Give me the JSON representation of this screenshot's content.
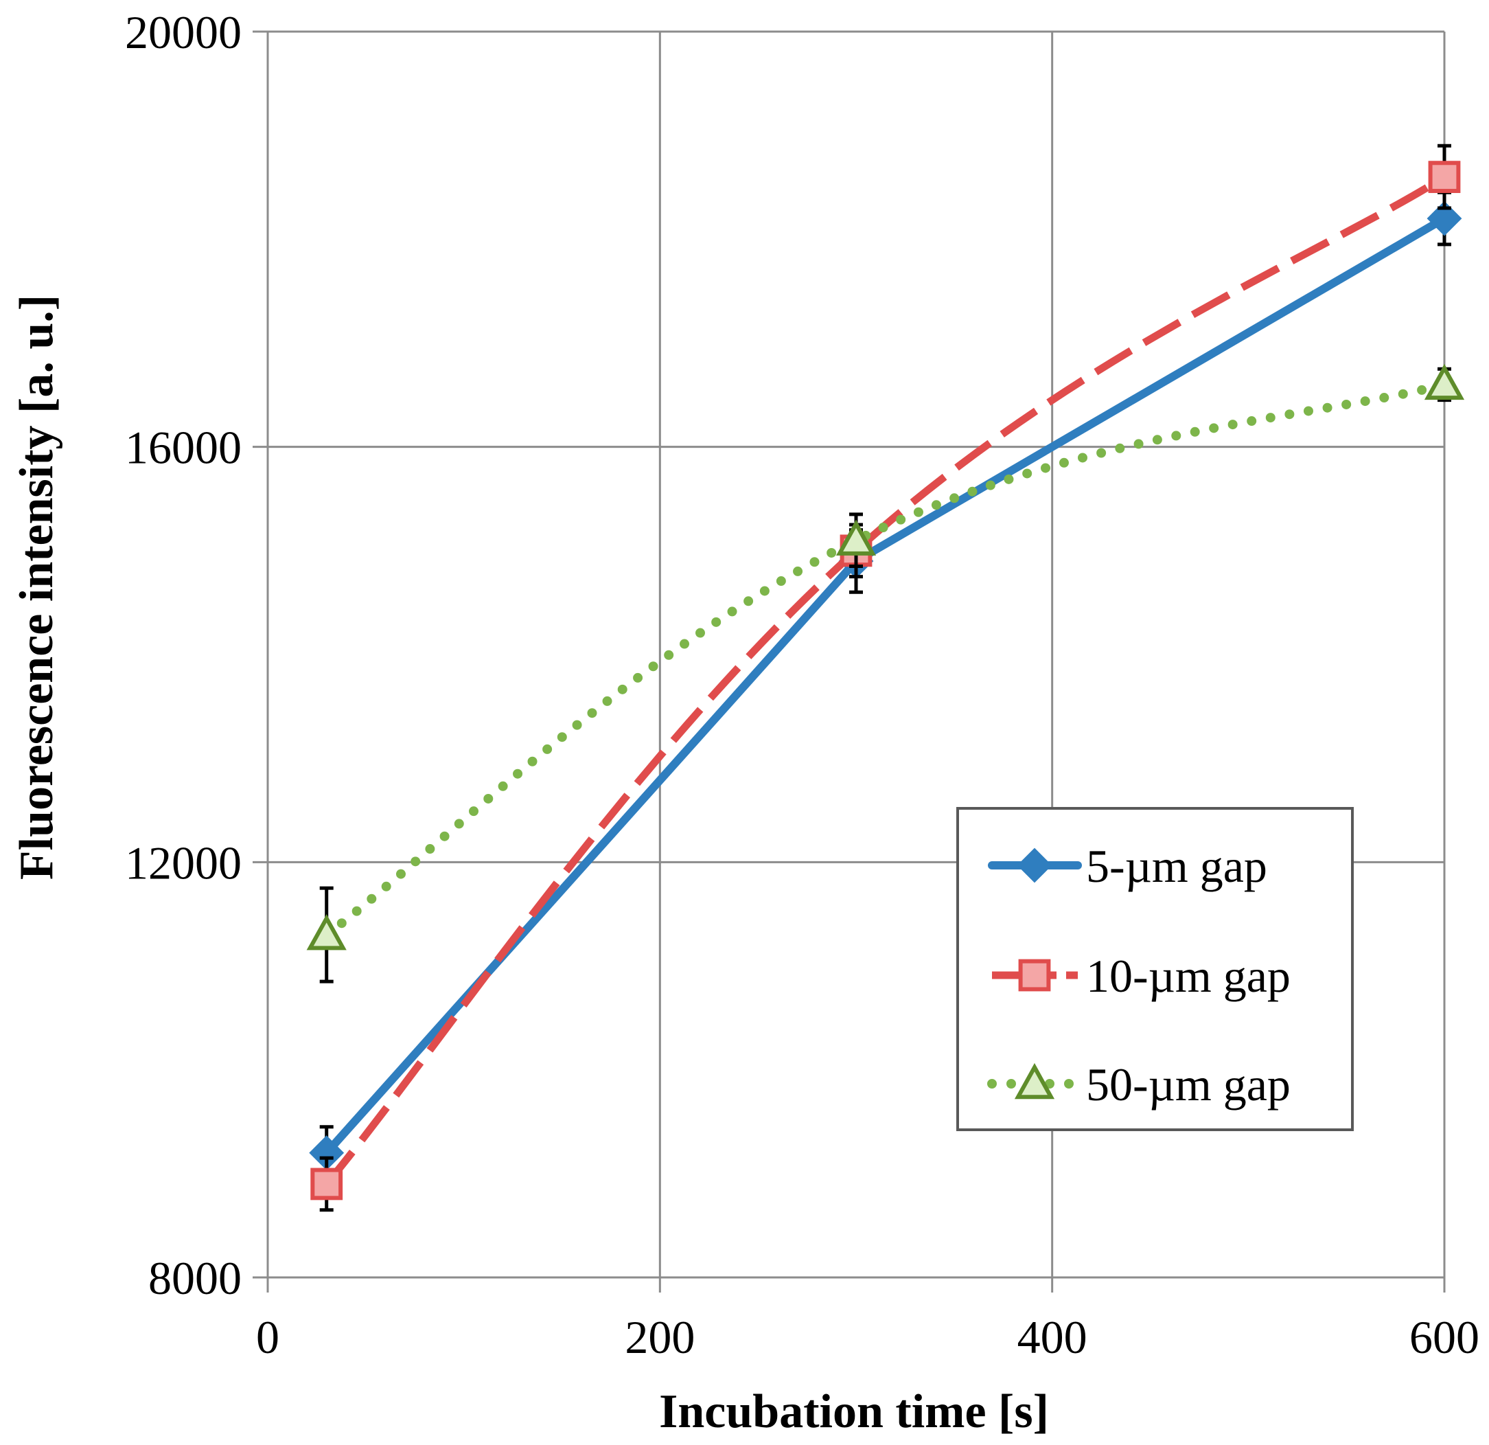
{
  "chart_data": {
    "type": "line",
    "title": "",
    "xlabel": "Incubation time [s]",
    "ylabel": "Fluorescence intensity [a. u.]",
    "xlim": [
      0,
      600
    ],
    "ylim": [
      8000,
      20000
    ],
    "xticks": [
      0,
      200,
      400,
      600
    ],
    "yticks": [
      8000,
      12000,
      16000,
      20000
    ],
    "xtick_labels": [
      "0",
      "200",
      "400",
      "600"
    ],
    "ytick_labels": [
      "8000",
      "12000",
      "16000",
      "20000"
    ],
    "grid": "horizontal major gridlines",
    "legend_position": "lower-right",
    "series": [
      {
        "name": "5-µm gap",
        "color": "#2F7EBF",
        "line_style": "solid",
        "marker": "diamond",
        "x": [
          30,
          300,
          600
        ],
        "y": [
          9200,
          14900,
          18200
        ],
        "error": [
          250,
          300,
          250
        ]
      },
      {
        "name": "10-µm gap",
        "color": "#E04C4C",
        "line_style": "dashed",
        "marker": "square",
        "x": [
          30,
          300,
          600
        ],
        "y": [
          8900,
          15000,
          18600
        ],
        "error": [
          250,
          250,
          300
        ]
      },
      {
        "name": "50-µm gap",
        "color": "#7DB54A",
        "line_style": "dotted",
        "marker": "triangle",
        "x": [
          30,
          300,
          600
        ],
        "y": [
          11300,
          15100,
          16600
        ],
        "error": [
          450,
          250,
          150
        ]
      }
    ]
  }
}
